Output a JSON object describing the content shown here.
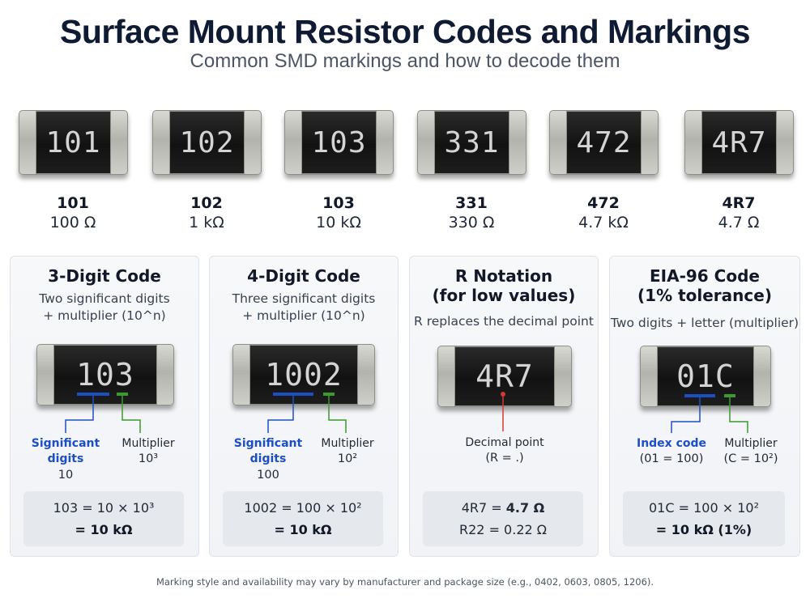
{
  "title": "Surface Mount Resistor Codes and Markings",
  "subtitle": "Common SMD markings and how to decode them",
  "colors": {
    "blue": "#1d4fc4",
    "green": "#3a9a2c",
    "red": "#d03a30",
    "chip_body": "#151515",
    "chip_cap": "#c5c5c0"
  },
  "chips": [
    {
      "code": "101",
      "value": "100 Ω"
    },
    {
      "code": "102",
      "value": "1 kΩ"
    },
    {
      "code": "103",
      "value": "10 kΩ"
    },
    {
      "code": "331",
      "value": "330 Ω"
    },
    {
      "code": "472",
      "value": "4.7 kΩ"
    },
    {
      "code": "4R7",
      "value": "4.7 Ω"
    }
  ],
  "panels": [
    {
      "title": "3-Digit Code",
      "desc": [
        "Two significant digits",
        "+ multiplier (10^n)"
      ],
      "chip_code": "103",
      "left_label": [
        "Significant",
        "digits"
      ],
      "left_value": "10",
      "right_label": "Multiplier",
      "right_value": "10³",
      "formula_1": "103 = 10 × 10³",
      "formula_2": "= 10 kΩ"
    },
    {
      "title": "4-Digit Code",
      "desc": [
        "Three significant digits",
        "+ multiplier (10^n)"
      ],
      "chip_code": "1002",
      "left_label": [
        "Significant",
        "digits"
      ],
      "left_value": "100",
      "right_label": "Multiplier",
      "right_value": "10²",
      "formula_1": "1002 = 100 × 10²",
      "formula_2": "= 10 kΩ"
    },
    {
      "title": [
        "R Notation",
        "(for low values)"
      ],
      "desc": [
        "R replaces the decimal point"
      ],
      "chip_code": "4R7",
      "center_label": "Decimal point",
      "center_value": "(R = .)",
      "formula_1_prefix": "4R7 = ",
      "formula_1_bold": "4.7 Ω",
      "formula_2": "R22 = 0.22 Ω"
    },
    {
      "title": [
        "EIA-96 Code",
        "(1% tolerance)"
      ],
      "desc": [
        "Two digits + letter (multiplier)"
      ],
      "chip_code": "01C",
      "left_label": [
        "Index code"
      ],
      "left_value": "(01 = 100)",
      "right_label": "Multiplier",
      "right_value": "(C = 10²)",
      "formula_1": "01C = 100 × 10²",
      "formula_2": "= 10 kΩ (1%)"
    }
  ],
  "footnote": "Marking style and availability may vary by manufacturer and package size (e.g., 0402, 0603, 0805, 1206)."
}
